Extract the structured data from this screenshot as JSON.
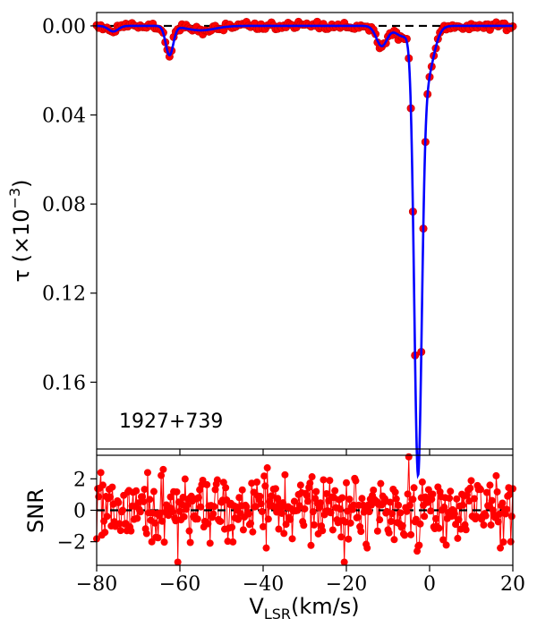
{
  "chart_data": [
    {
      "type": "line",
      "panel": "top",
      "annotation": "1927+739",
      "ylabel_main": "τ (×10",
      "ylabel_sup": "−3",
      "ylabel_close": ")",
      "xlim": [
        -80,
        20
      ],
      "ylim": [
        0.19,
        -0.006
      ],
      "y_inverted": true,
      "yticks": [
        0.0,
        0.04,
        0.08,
        0.12,
        0.16
      ],
      "ytick_labels": [
        "0.00",
        "0.04",
        "0.08",
        "0.12",
        "0.16"
      ],
      "reference_line": {
        "y": 0.0,
        "style": "dashed",
        "color": "#000000"
      },
      "series": [
        {
          "kind": "observed-points",
          "color": "#ff0000",
          "components": [
            {
              "center": -62.5,
              "depth": 0.013,
              "width": 0.9
            },
            {
              "center": -76.0,
              "depth": 0.0025,
              "width": 1.2
            },
            {
              "center": -55.0,
              "depth": 0.002,
              "width": 3.5
            },
            {
              "center": -11.5,
              "depth": 0.009,
              "width": 1.3
            },
            {
              "center": -6.5,
              "depth": 0.0045,
              "width": 1.8
            },
            {
              "center": -2.8,
              "depth": 0.186,
              "width": 0.9
            },
            {
              "center": -1.0,
              "depth": 0.025,
              "width": 1.8
            }
          ],
          "x_start": -80,
          "x_end": 20,
          "x_step": 0.5
        },
        {
          "kind": "model-fit",
          "color": "#0000ff"
        }
      ]
    },
    {
      "type": "scatter",
      "panel": "bottom",
      "ylabel": "SNR",
      "xlabel_main": "V",
      "xlabel_sub": "LSR",
      "xlabel_rest": "(km/s)",
      "xlim": [
        -80,
        20
      ],
      "ylim": [
        -3.5,
        3.5
      ],
      "xticks": [
        -80,
        -60,
        -40,
        -20,
        0,
        20
      ],
      "xtick_labels": [
        "−80",
        "−60",
        "−40",
        "−20",
        "0",
        "20"
      ],
      "yticks": [
        2,
        0,
        -2
      ],
      "ytick_labels": [
        "2",
        "0",
        "−2"
      ],
      "reference_line": {
        "y": 0,
        "style": "dashed",
        "color": "#000000"
      },
      "series": [
        {
          "name": "",
          "color": "#ff0000",
          "noise_amplitude": 1.0,
          "outliers": [
            {
              "x": -5.0,
              "y": 3.4
            },
            {
              "x": -20.5,
              "y": -3.3
            },
            {
              "x": -60.5,
              "y": -3.3
            },
            {
              "x": -39.0,
              "y": 2.7
            },
            {
              "x": -64.0,
              "y": 2.6
            },
            {
              "x": -3.0,
              "y": -2.6
            },
            {
              "x": -24.0,
              "y": 1.9
            },
            {
              "x": 19.5,
              "y": -2.0
            }
          ]
        }
      ]
    }
  ]
}
